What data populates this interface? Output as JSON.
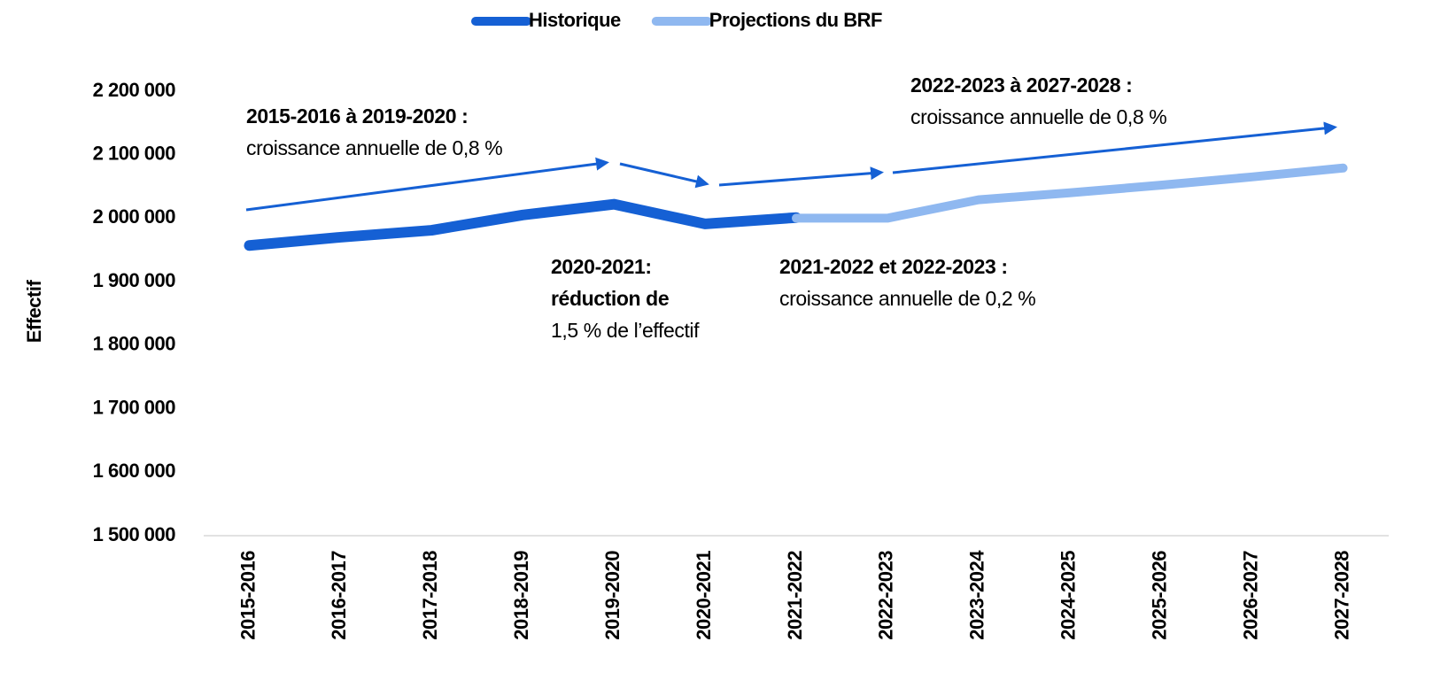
{
  "chart_data": {
    "type": "line",
    "y_label": "Effectif",
    "categories": [
      "2015-2016",
      "2016-2017",
      "2017-2018",
      "2018-2019",
      "2019-2020",
      "2020-2021",
      "2021-2022",
      "2022-2023",
      "2023-2024",
      "2024-2025",
      "2025-2026",
      "2026-2027",
      "2027-2028"
    ],
    "series": [
      {
        "name": "Historique",
        "color": "#1560d4",
        "values": [
          1957000,
          1970000,
          1981000,
          2005000,
          2022000,
          1991000,
          2001000,
          null,
          null,
          null,
          null,
          null,
          null
        ]
      },
      {
        "name": "Projections du BRF",
        "color": "#8fb8f0",
        "values": [
          null,
          null,
          null,
          null,
          null,
          null,
          2000000,
          2000000,
          2029000,
          2040000,
          2052000,
          2065000,
          2079000
        ]
      }
    ],
    "ylim": [
      1500000,
      2200000
    ],
    "yticks": [
      {
        "value": 1500000,
        "label": "1 500 000"
      },
      {
        "value": 1600000,
        "label": "1 600 000"
      },
      {
        "value": 1700000,
        "label": "1 700 000"
      },
      {
        "value": 1800000,
        "label": "1 800 000"
      },
      {
        "value": 1900000,
        "label": "1 900 000"
      },
      {
        "value": 2000000,
        "label": "2 000 000"
      },
      {
        "value": 2100000,
        "label": "2 100 000"
      },
      {
        "value": 2200000,
        "label": "2 200 000"
      }
    ],
    "grid": false,
    "legend": "top",
    "annotations": [
      {
        "bold": [
          "2015-2016 à 2019-2020 :"
        ],
        "text": [
          "croissance annuelle de 0,8 %"
        ]
      },
      {
        "bold": [
          "2020-2021:",
          "réduction de"
        ],
        "text": [
          "1,5 % de l’effectif"
        ]
      },
      {
        "bold": [
          "2021-2022 et 2022-2023 :"
        ],
        "text": [
          "croissance annuelle de 0,2 %"
        ]
      },
      {
        "bold": [
          "2022-2023 à 2027-2028 :"
        ],
        "text": [
          "croissance annuelle de 0,8 %"
        ]
      }
    ]
  }
}
